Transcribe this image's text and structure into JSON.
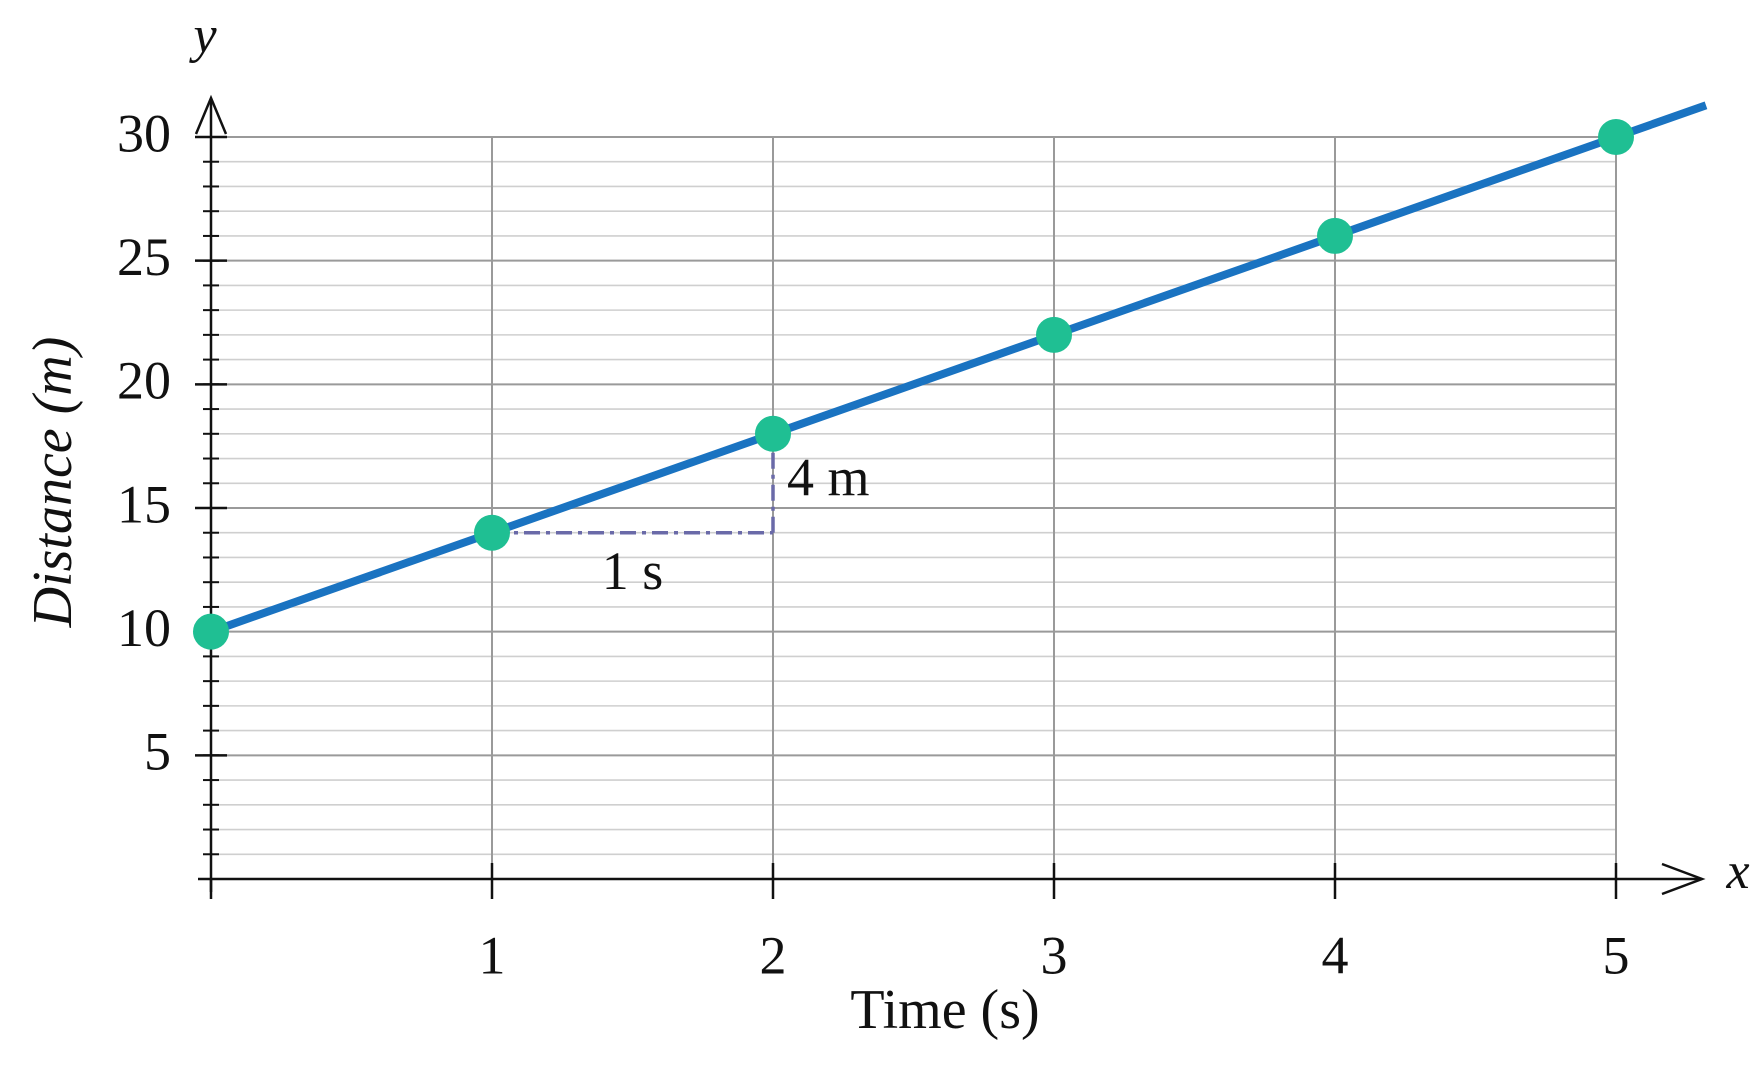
{
  "chart_data": {
    "type": "line",
    "x_label": "Time (s)",
    "y_label": "Distance (m)",
    "x_axis_letter": "x",
    "y_axis_letter": "y",
    "x": [
      0,
      1,
      2,
      3,
      4,
      5
    ],
    "series": [
      {
        "color": "#1a73c1",
        "marker_color": "#1fbf93",
        "values": [
          10,
          14,
          18,
          22,
          26,
          30
        ]
      }
    ],
    "xlim": [
      0,
      5
    ],
    "ylim": [
      0,
      30
    ],
    "xticks": [
      1,
      2,
      3,
      4,
      5
    ],
    "yticks": [
      5,
      10,
      15,
      20,
      25,
      30
    ],
    "y_minor_step": 1,
    "grid": true,
    "slope_triangle": {
      "from": [
        1,
        14
      ],
      "to": [
        2,
        18
      ],
      "run_label": "1 s",
      "rise_label": "4 m",
      "color": "#6a6aa8"
    }
  }
}
